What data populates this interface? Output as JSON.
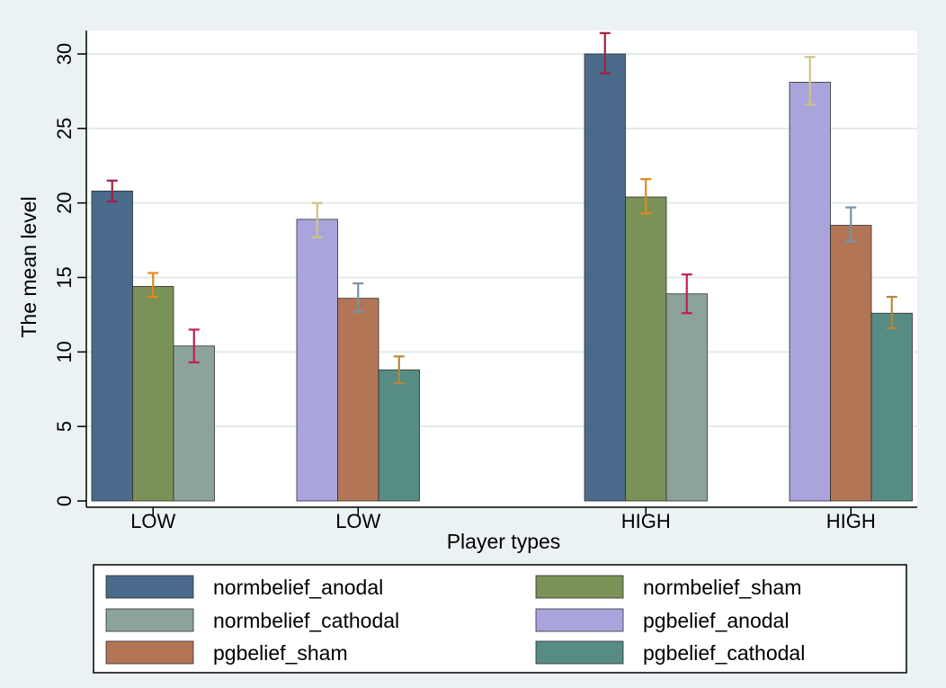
{
  "chart_data": {
    "type": "bar",
    "title": "",
    "xlabel": "Player types",
    "ylabel": "The mean level",
    "ylim": [
      0,
      31.5
    ],
    "yticks": [
      0,
      5,
      10,
      15,
      20,
      25,
      30
    ],
    "grid": true,
    "legend_position": "bottom",
    "groups": [
      {
        "label": "LOW",
        "bars": [
          {
            "series": "normbelief_anodal",
            "value": 20.8,
            "err_low": 20.1,
            "err_high": 21.5
          },
          {
            "series": "normbelief_sham",
            "value": 14.4,
            "err_low": 13.7,
            "err_high": 15.3
          },
          {
            "series": "normbelief_cathodal",
            "value": 10.4,
            "err_low": 9.3,
            "err_high": 11.5
          }
        ]
      },
      {
        "label": "LOW",
        "bars": [
          {
            "series": "pgbelief_anodal",
            "value": 18.9,
            "err_low": 17.7,
            "err_high": 20.0
          },
          {
            "series": "pgbelief_sham",
            "value": 13.6,
            "err_low": 12.7,
            "err_high": 14.6
          },
          {
            "series": "pgbelief_cathodal",
            "value": 8.8,
            "err_low": 7.9,
            "err_high": 9.7
          }
        ]
      },
      {
        "label": "HIGH",
        "bars": [
          {
            "series": "normbelief_anodal",
            "value": 30.0,
            "err_low": 28.7,
            "err_high": 31.4
          },
          {
            "series": "normbelief_sham",
            "value": 20.4,
            "err_low": 19.3,
            "err_high": 21.6
          },
          {
            "series": "normbelief_cathodal",
            "value": 13.9,
            "err_low": 12.6,
            "err_high": 15.2
          }
        ]
      },
      {
        "label": "HIGH",
        "bars": [
          {
            "series": "pgbelief_anodal",
            "value": 28.1,
            "err_low": 26.6,
            "err_high": 29.8
          },
          {
            "series": "pgbelief_sham",
            "value": 18.5,
            "err_low": 17.4,
            "err_high": 19.7
          },
          {
            "series": "pgbelief_cathodal",
            "value": 12.6,
            "err_low": 11.6,
            "err_high": 13.7
          }
        ]
      }
    ],
    "series": [
      {
        "name": "normbelief_anodal",
        "color": "#4a6b8b",
        "err_color": "#a31f3f"
      },
      {
        "name": "normbelief_sham",
        "color": "#7a9157",
        "err_color": "#e0871f"
      },
      {
        "name": "normbelief_cathodal",
        "color": "#8ca39b",
        "err_color": "#c21f4f"
      },
      {
        "name": "pgbelief_anodal",
        "color": "#a9a4dc",
        "err_color": "#d2c283"
      },
      {
        "name": "pgbelief_sham",
        "color": "#b27656",
        "err_color": "#7a92a6"
      },
      {
        "name": "pgbelief_cathodal",
        "color": "#578c85",
        "err_color": "#b5883c"
      }
    ],
    "legend_order": [
      "normbelief_anodal",
      "normbelief_sham",
      "normbelief_cathodal",
      "pgbelief_anodal",
      "pgbelief_sham",
      "pgbelief_cathodal"
    ]
  }
}
